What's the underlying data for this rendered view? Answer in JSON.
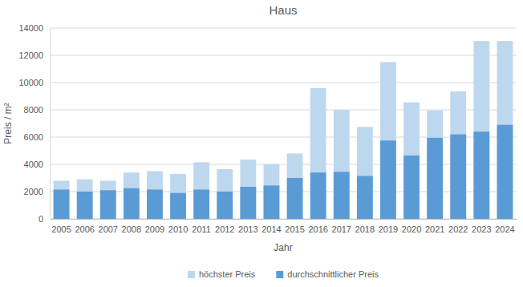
{
  "chart_data": {
    "type": "bar",
    "title": "Haus",
    "x_label": "Jahr",
    "y_label": "Preis / m²",
    "categories": [
      "2005",
      "2006",
      "2007",
      "2008",
      "2009",
      "2010",
      "2011",
      "2012",
      "2013",
      "2014",
      "2015",
      "2016",
      "2017",
      "2018",
      "2019",
      "2020",
      "2021",
      "2022",
      "2023",
      "2024"
    ],
    "series": [
      {
        "name": "höchster Preis",
        "color": "#bdd7ee",
        "values": [
          2800,
          2900,
          2800,
          3400,
          3500,
          3300,
          4150,
          3650,
          4350,
          4000,
          4800,
          9600,
          8000,
          6750,
          11500,
          8550,
          7950,
          9350,
          13050,
          13050
        ]
      },
      {
        "name": "durchschnittlicher Preis",
        "color": "#5b9bd5",
        "values": [
          2150,
          2000,
          2100,
          2250,
          2150,
          1900,
          2150,
          2000,
          2350,
          2450,
          3000,
          3400,
          3450,
          3150,
          5750,
          4650,
          5950,
          6200,
          6400,
          6900
        ]
      }
    ],
    "ylim": [
      0,
      14000
    ],
    "yticks": [
      0,
      2000,
      4000,
      6000,
      8000,
      10000,
      12000,
      14000
    ],
    "grid": true,
    "legend": "bottom"
  }
}
